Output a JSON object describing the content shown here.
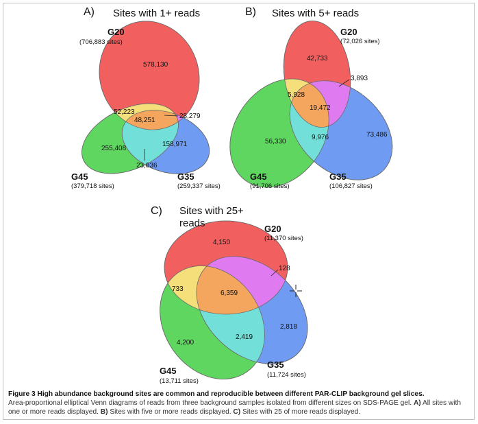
{
  "panel_a": {
    "letter": "A)",
    "title": "Sites  with 1+ reads",
    "g20": {
      "name": "G20",
      "sites": "(706,883 sites)"
    },
    "g45": {
      "name": "G45",
      "sites": "(379,718 sites)"
    },
    "g35": {
      "name": "G35",
      "sites": "(259,337 sites)"
    },
    "regions": {
      "g20_only": "578,130",
      "g20_g45": "52,223",
      "all": "48,251",
      "g20_g35": "28,279",
      "g45_only": "255,408",
      "g35_only": "158,971",
      "g45_g35": "23,836"
    }
  },
  "panel_b": {
    "letter": "B)",
    "title": "Sites  with 5+ reads",
    "g20": {
      "name": "G20",
      "sites": "(72,026 sites)"
    },
    "g45": {
      "name": "G45",
      "sites": "(91,706 sites)"
    },
    "g35": {
      "name": "G35",
      "sites": "(106,827 sites)"
    },
    "regions": {
      "g20_only": "42,733",
      "g20_g35": "3,893",
      "g20_g45": "5,928",
      "all": "19,472",
      "g45_only": "56,330",
      "g45_g35": "9,976",
      "g35_only": "73,486"
    }
  },
  "panel_c": {
    "letter": "C)",
    "title_line1": "Sites  with 25+",
    "title_line2": "reads",
    "g20": {
      "name": "G20",
      "sites": "(11,370 sites)"
    },
    "g45": {
      "name": "G45",
      "sites": "(13,711 sites)"
    },
    "g35": {
      "name": "G35",
      "sites": "(11,724 sites)"
    },
    "regions": {
      "g20_only": "4,150",
      "g20_g35": "128",
      "g20_g45": "733",
      "all": "6,359",
      "g45_only": "4,200",
      "g45_g35": "2,419",
      "g35_only": "2,818"
    }
  },
  "colors": {
    "g20": "#f25f5f",
    "g45": "#5fd65f",
    "g35": "#6f9bf2",
    "g20_g45": "#f5df7a",
    "g20_g35": "#e07af0",
    "g45_g35": "#72e0d8",
    "all": "#f5a65e"
  },
  "caption": {
    "title": "Figure 3 High abundance background sites are common and reproducible between different PAR-CLIP background gel slices.",
    "text_1": "Area-proportional elliptical Venn diagrams of reads from three background samples isolated from different sizes on SDS-PAGE gel. ",
    "a_label": "A)",
    "text_2": " All sites with one or more reads displayed. ",
    "b_label": "B)",
    "text_3": " Sites with five or more reads displayed. ",
    "c_label": "C)",
    "text_4": " Sites with 25 of more reads displayed."
  }
}
